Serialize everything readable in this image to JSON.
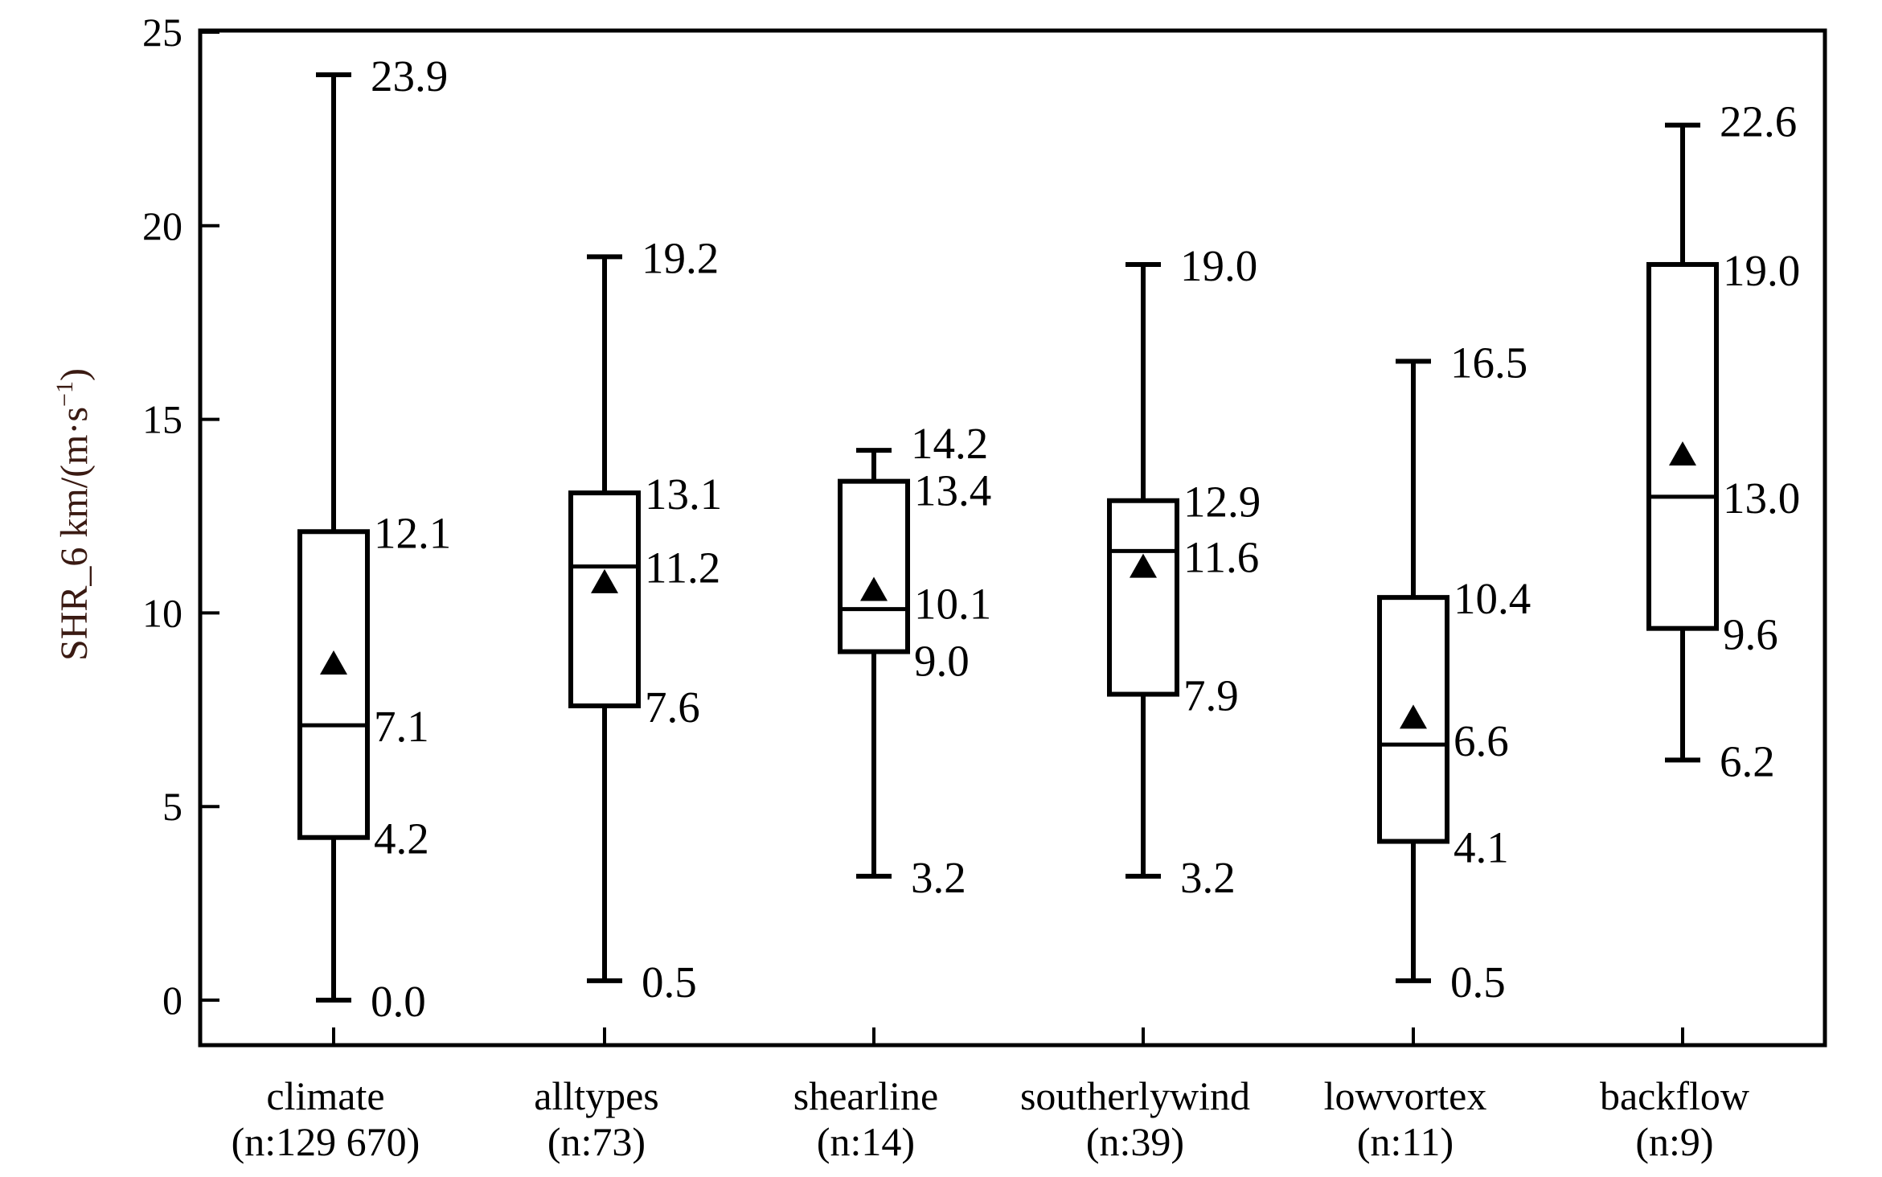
{
  "chart_data": {
    "type": "box",
    "ylabel": "SHR_6 km/(m·s",
    "ylabel_sup": "−1",
    "ylabel_close": ")",
    "ylim": [
      0,
      25
    ],
    "yticks": [
      "0",
      "5",
      "10",
      "15",
      "20",
      "25"
    ],
    "yticks_values": [
      0,
      5,
      10,
      15,
      20,
      25
    ],
    "grid": false,
    "legend": "none",
    "series": [
      {
        "category": "climate",
        "n_label": "(n:129  670)",
        "min": 0.0,
        "q1": 4.2,
        "median": 7.1,
        "q3": 12.1,
        "max": 23.9,
        "mean": 8.7,
        "labels": {
          "max": "23.9",
          "q3": "12.1",
          "median": "7.1",
          "q1": "4.2",
          "min": "0.0"
        }
      },
      {
        "category": "alltypes",
        "n_label": "(n:73)",
        "min": 0.5,
        "q1": 7.6,
        "median": 11.2,
        "q3": 13.1,
        "max": 19.2,
        "mean": 10.8,
        "labels": {
          "max": "19.2",
          "q3": "13.1",
          "median": "11.2",
          "q1": "7.6",
          "min": "0.5"
        }
      },
      {
        "category": "shearline",
        "n_label": "(n:14)",
        "min": 3.2,
        "q1": 9.0,
        "median": 10.1,
        "q3": 13.4,
        "max": 14.2,
        "mean": 10.6,
        "labels": {
          "max": "14.2",
          "q3": "13.4",
          "median": "10.1",
          "q1": "9.0",
          "min": "3.2"
        }
      },
      {
        "category": "southerlywind",
        "n_label": "(n:39)",
        "min": 3.2,
        "q1": 7.9,
        "median": 11.6,
        "q3": 12.9,
        "max": 19.0,
        "mean": 11.2,
        "labels": {
          "max": "19.0",
          "q3": "12.9",
          "median": "11.6",
          "q1": "7.9",
          "min": "3.2"
        }
      },
      {
        "category": "lowvortex",
        "n_label": "(n:11)",
        "min": 0.5,
        "q1": 4.1,
        "median": 6.6,
        "q3": 10.4,
        "max": 16.5,
        "mean": 7.3,
        "labels": {
          "max": "16.5",
          "q3": "10.4",
          "median": "6.6",
          "q1": "4.1",
          "min": "0.5"
        }
      },
      {
        "category": "backflow",
        "n_label": "(n:9)",
        "min": 6.2,
        "q1": 9.6,
        "median": 13.0,
        "q3": 19.0,
        "max": 22.6,
        "mean": 14.1,
        "labels": {
          "max": "22.6",
          "q3": "19.0",
          "median": "13.0",
          "q1": "9.6",
          "min": "6.2"
        }
      }
    ],
    "colors": {
      "stroke": "#000000",
      "mean_marker": "#000000",
      "ylabel": "#3a1a12"
    }
  }
}
